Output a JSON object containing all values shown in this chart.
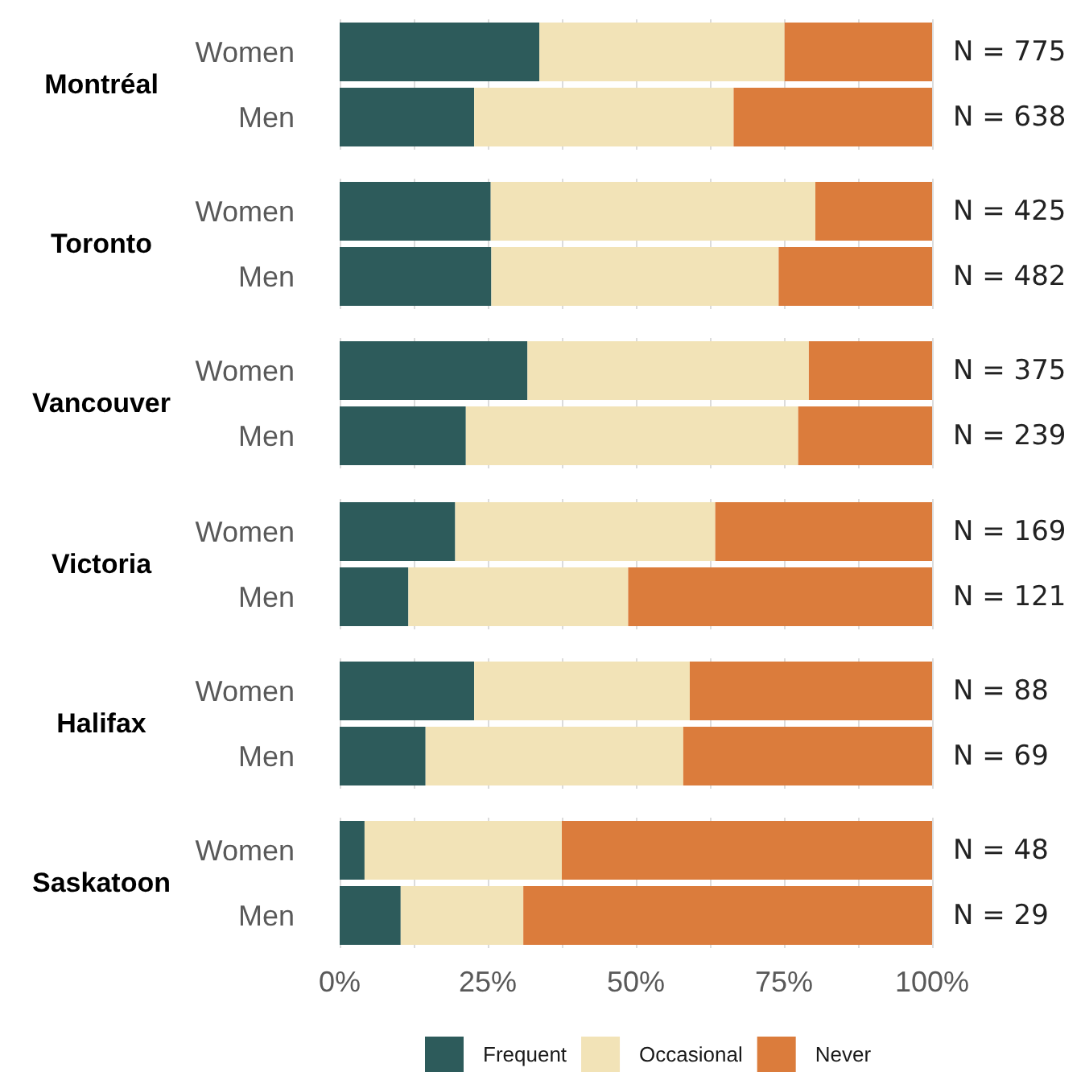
{
  "chart_data": [
    {
      "type": "bar",
      "orientation": "horizontal",
      "stacked": true,
      "title": "Montréal",
      "categories": [
        "Women",
        "Men"
      ],
      "series": [
        {
          "color": "#2d5b5b",
          "values": [
            33.7,
            22.7
          ]
        },
        {
          "color": "#f2e3b7",
          "values": [
            41.4,
            43.8
          ]
        },
        {
          "color": "#db7c3c",
          "values": [
            24.9,
            33.5
          ]
        }
      ],
      "xlim": [
        0,
        100
      ],
      "xticks": [
        0,
        12.5,
        25,
        37.5,
        50,
        62.5,
        75,
        87.5,
        100
      ],
      "grid": "x",
      "tick_labels": "y",
      "annotations": [
        "N = 775",
        "N = 638"
      ]
    },
    {
      "type": "bar",
      "orientation": "horizontal",
      "stacked": true,
      "title": "Toronto",
      "categories": [
        "Women",
        "Men"
      ],
      "series": [
        {
          "color": "#2d5b5b",
          "values": [
            25.5,
            25.6
          ]
        },
        {
          "color": "#f2e3b7",
          "values": [
            54.8,
            48.5
          ]
        },
        {
          "color": "#db7c3c",
          "values": [
            19.7,
            25.9
          ]
        }
      ],
      "xlim": [
        0,
        100
      ],
      "xticks": [
        0,
        12.5,
        25,
        37.5,
        50,
        62.5,
        75,
        87.5,
        100
      ],
      "grid": "x",
      "tick_labels": "y",
      "annotations": [
        "N = 425",
        "N = 482"
      ]
    },
    {
      "type": "bar",
      "orientation": "horizontal",
      "stacked": true,
      "title": "Vancouver",
      "categories": [
        "Women",
        "Men"
      ],
      "series": [
        {
          "color": "#2d5b5b",
          "values": [
            31.7,
            21.3
          ]
        },
        {
          "color": "#f2e3b7",
          "values": [
            47.5,
            56.1
          ]
        },
        {
          "color": "#db7c3c",
          "values": [
            20.8,
            22.6
          ]
        }
      ],
      "xlim": [
        0,
        100
      ],
      "xticks": [
        0,
        12.5,
        25,
        37.5,
        50,
        62.5,
        75,
        87.5,
        100
      ],
      "grid": "x",
      "tick_labels": "y",
      "annotations": [
        "N = 375",
        "N = 239"
      ]
    },
    {
      "type": "bar",
      "orientation": "horizontal",
      "stacked": true,
      "title": "Victoria",
      "categories": [
        "Women",
        "Men"
      ],
      "series": [
        {
          "color": "#2d5b5b",
          "values": [
            19.5,
            11.6
          ]
        },
        {
          "color": "#f2e3b7",
          "values": [
            43.9,
            37.1
          ]
        },
        {
          "color": "#db7c3c",
          "values": [
            36.6,
            51.3
          ]
        }
      ],
      "xlim": [
        0,
        100
      ],
      "xticks": [
        0,
        12.5,
        25,
        37.5,
        50,
        62.5,
        75,
        87.5,
        100
      ],
      "grid": "x",
      "tick_labels": "y",
      "annotations": [
        "N = 169",
        "N = 121"
      ]
    },
    {
      "type": "bar",
      "orientation": "horizontal",
      "stacked": true,
      "title": "Halifax",
      "categories": [
        "Women",
        "Men"
      ],
      "series": [
        {
          "color": "#2d5b5b",
          "values": [
            22.7,
            14.5
          ]
        },
        {
          "color": "#f2e3b7",
          "values": [
            36.4,
            43.5
          ]
        },
        {
          "color": "#db7c3c",
          "values": [
            40.9,
            42.0
          ]
        }
      ],
      "xlim": [
        0,
        100
      ],
      "xticks": [
        0,
        12.5,
        25,
        37.5,
        50,
        62.5,
        75,
        87.5,
        100
      ],
      "grid": "x",
      "tick_labels": "y",
      "annotations": [
        "N = 88",
        "N = 69"
      ]
    },
    {
      "type": "bar",
      "orientation": "horizontal",
      "stacked": true,
      "title": "Saskatoon",
      "categories": [
        "Women",
        "Men"
      ],
      "series": [
        {
          "name": "Frequent",
          "color": "#2d5b5b",
          "values": [
            4.2,
            10.3
          ]
        },
        {
          "name": "Occasional",
          "color": "#f2e3b7",
          "values": [
            33.3,
            20.7
          ]
        },
        {
          "name": "Never",
          "color": "#db7c3c",
          "values": [
            62.5,
            69.0
          ]
        }
      ],
      "xlim": [
        0,
        100
      ],
      "xticks": [
        {
          "value": 0,
          "label": "0%"
        },
        {
          "value": 12.5,
          "label": null
        },
        {
          "value": 25,
          "label": "25%"
        },
        {
          "value": 37.5,
          "label": null
        },
        {
          "value": 50,
          "label": "50%"
        },
        {
          "value": 62.5,
          "label": null
        },
        {
          "value": 75,
          "label": "75%"
        },
        {
          "value": 87.5,
          "label": null
        },
        {
          "value": 100,
          "label": "100%"
        }
      ],
      "grid": "x",
      "legend": "bottom",
      "annotations": [
        "N = 48",
        "N = 29"
      ]
    }
  ]
}
